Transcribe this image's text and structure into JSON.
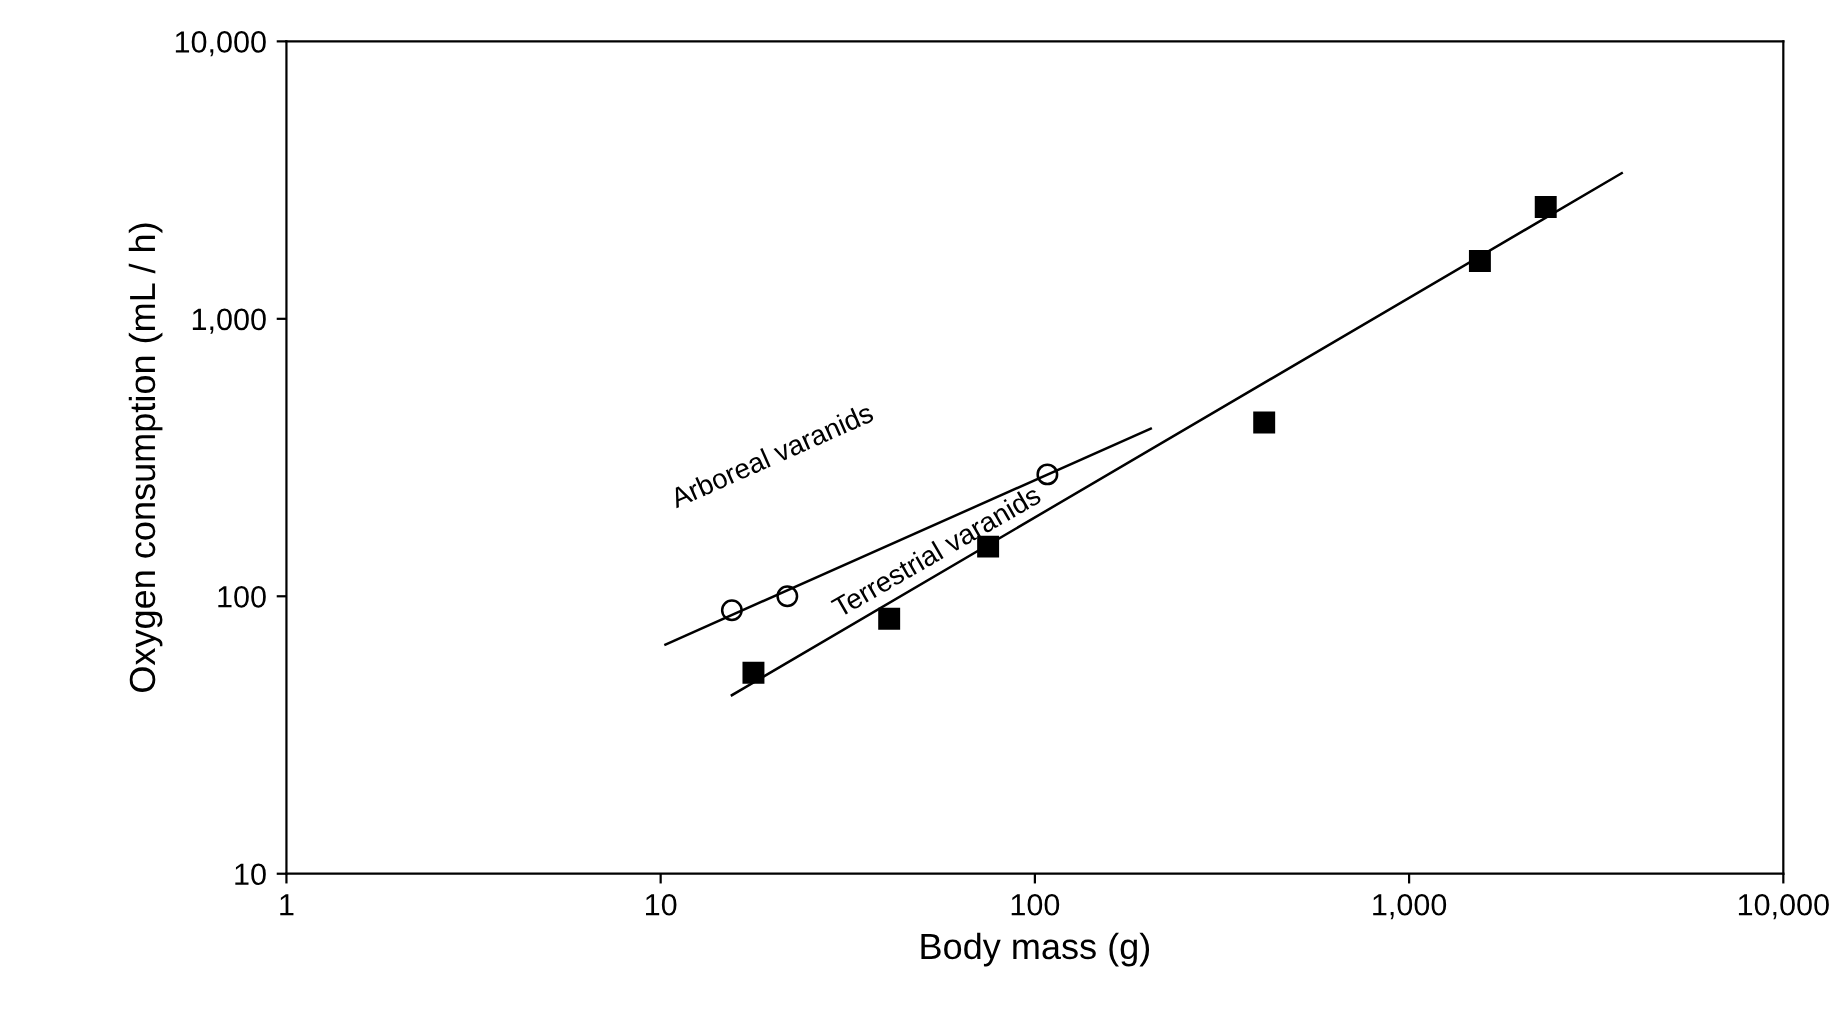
{
  "chart_data": {
    "type": "scatter",
    "xlabel": "Body mass (g)",
    "ylabel": "Oxygen consumption (mL / h)",
    "log": "xy",
    "grid": false,
    "legend": false,
    "xlim": [
      1,
      10000
    ],
    "ylim": [
      10,
      10000
    ],
    "xticks": [
      1,
      10,
      100,
      {
        "value": 1000,
        "label": "1,000"
      },
      {
        "value": 10000,
        "label": "10,000"
      }
    ],
    "yticks": [
      10,
      100,
      {
        "value": 1000,
        "label": "1,000"
      },
      {
        "value": 10000,
        "label": "10,000"
      }
    ],
    "series": [
      {
        "marker": "circle",
        "color": "#000000",
        "x": [
          15.5,
          21.8,
          108
        ],
        "values": [
          89,
          100,
          275
        ]
      },
      {
        "marker": "square",
        "color": "#000000",
        "x": [
          17.7,
          40.8,
          75,
          410,
          1546,
          2318
        ],
        "values": [
          53,
          83,
          151,
          423,
          1617,
          2530
        ]
      },
      {
        "type": "line",
        "marker": "none",
        "color": "#000000",
        "x": [
          10.3,
          204
        ],
        "values": [
          67,
          402
        ]
      },
      {
        "type": "line",
        "marker": "none",
        "color": "#000000",
        "x": [
          15.5,
          3700
        ],
        "values": [
          44,
          3350
        ]
      }
    ],
    "annotations": [
      "Arboreal varanids",
      "Terrestrial varanids"
    ]
  }
}
